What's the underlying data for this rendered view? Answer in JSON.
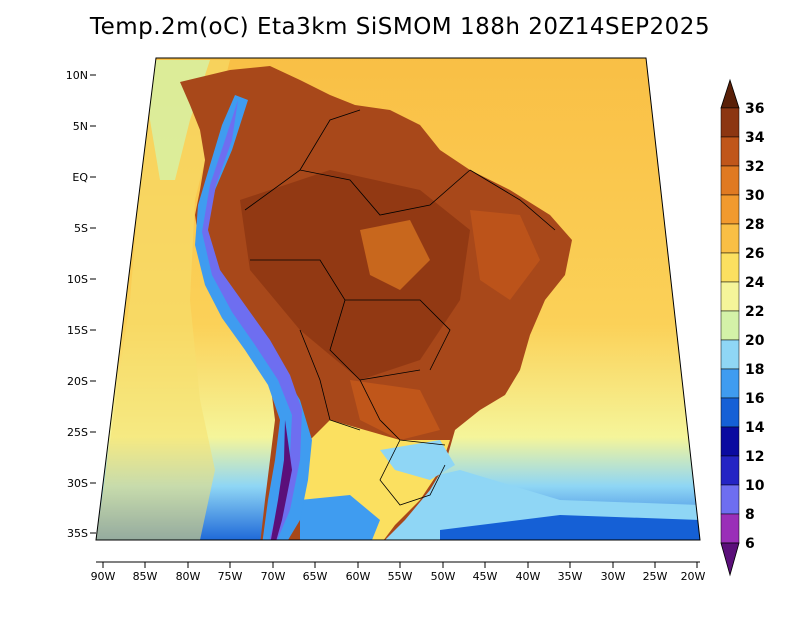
{
  "title": "Temp.2m(oC) Eta3km SiSMOM 188h 20Z14SEP2025",
  "map": {
    "lat_labels": [
      "10N",
      "5N",
      "EQ",
      "5S",
      "10S",
      "15S",
      "20S",
      "25S",
      "30S",
      "35S"
    ],
    "lon_labels": [
      "90W",
      "85W",
      "80W",
      "75W",
      "70W",
      "65W",
      "60W",
      "55W",
      "50W",
      "45W",
      "40W",
      "35W",
      "30W",
      "25W",
      "20W"
    ]
  },
  "colorbar": {
    "levels": [
      "6",
      "8",
      "10",
      "12",
      "14",
      "16",
      "18",
      "20",
      "22",
      "24",
      "26",
      "28",
      "30",
      "32",
      "34",
      "36"
    ],
    "colors": [
      "#5b0f7a",
      "#9a2fb8",
      "#6e6ef0",
      "#2424c4",
      "#0a0aa0",
      "#1560d6",
      "#3f9cf0",
      "#8fd6f5",
      "#d4f2a8",
      "#f5f59a",
      "#fbe060",
      "#f9bf45",
      "#f29a2e",
      "#e07a22",
      "#c0561a",
      "#8c3612",
      "#5a2008"
    ]
  },
  "colors": {
    "ocean_warm": "#f9bf45",
    "ocean_mild": "#fbe060",
    "land_hot": "#a8481a",
    "andes_cold": "#3f9cf0"
  }
}
